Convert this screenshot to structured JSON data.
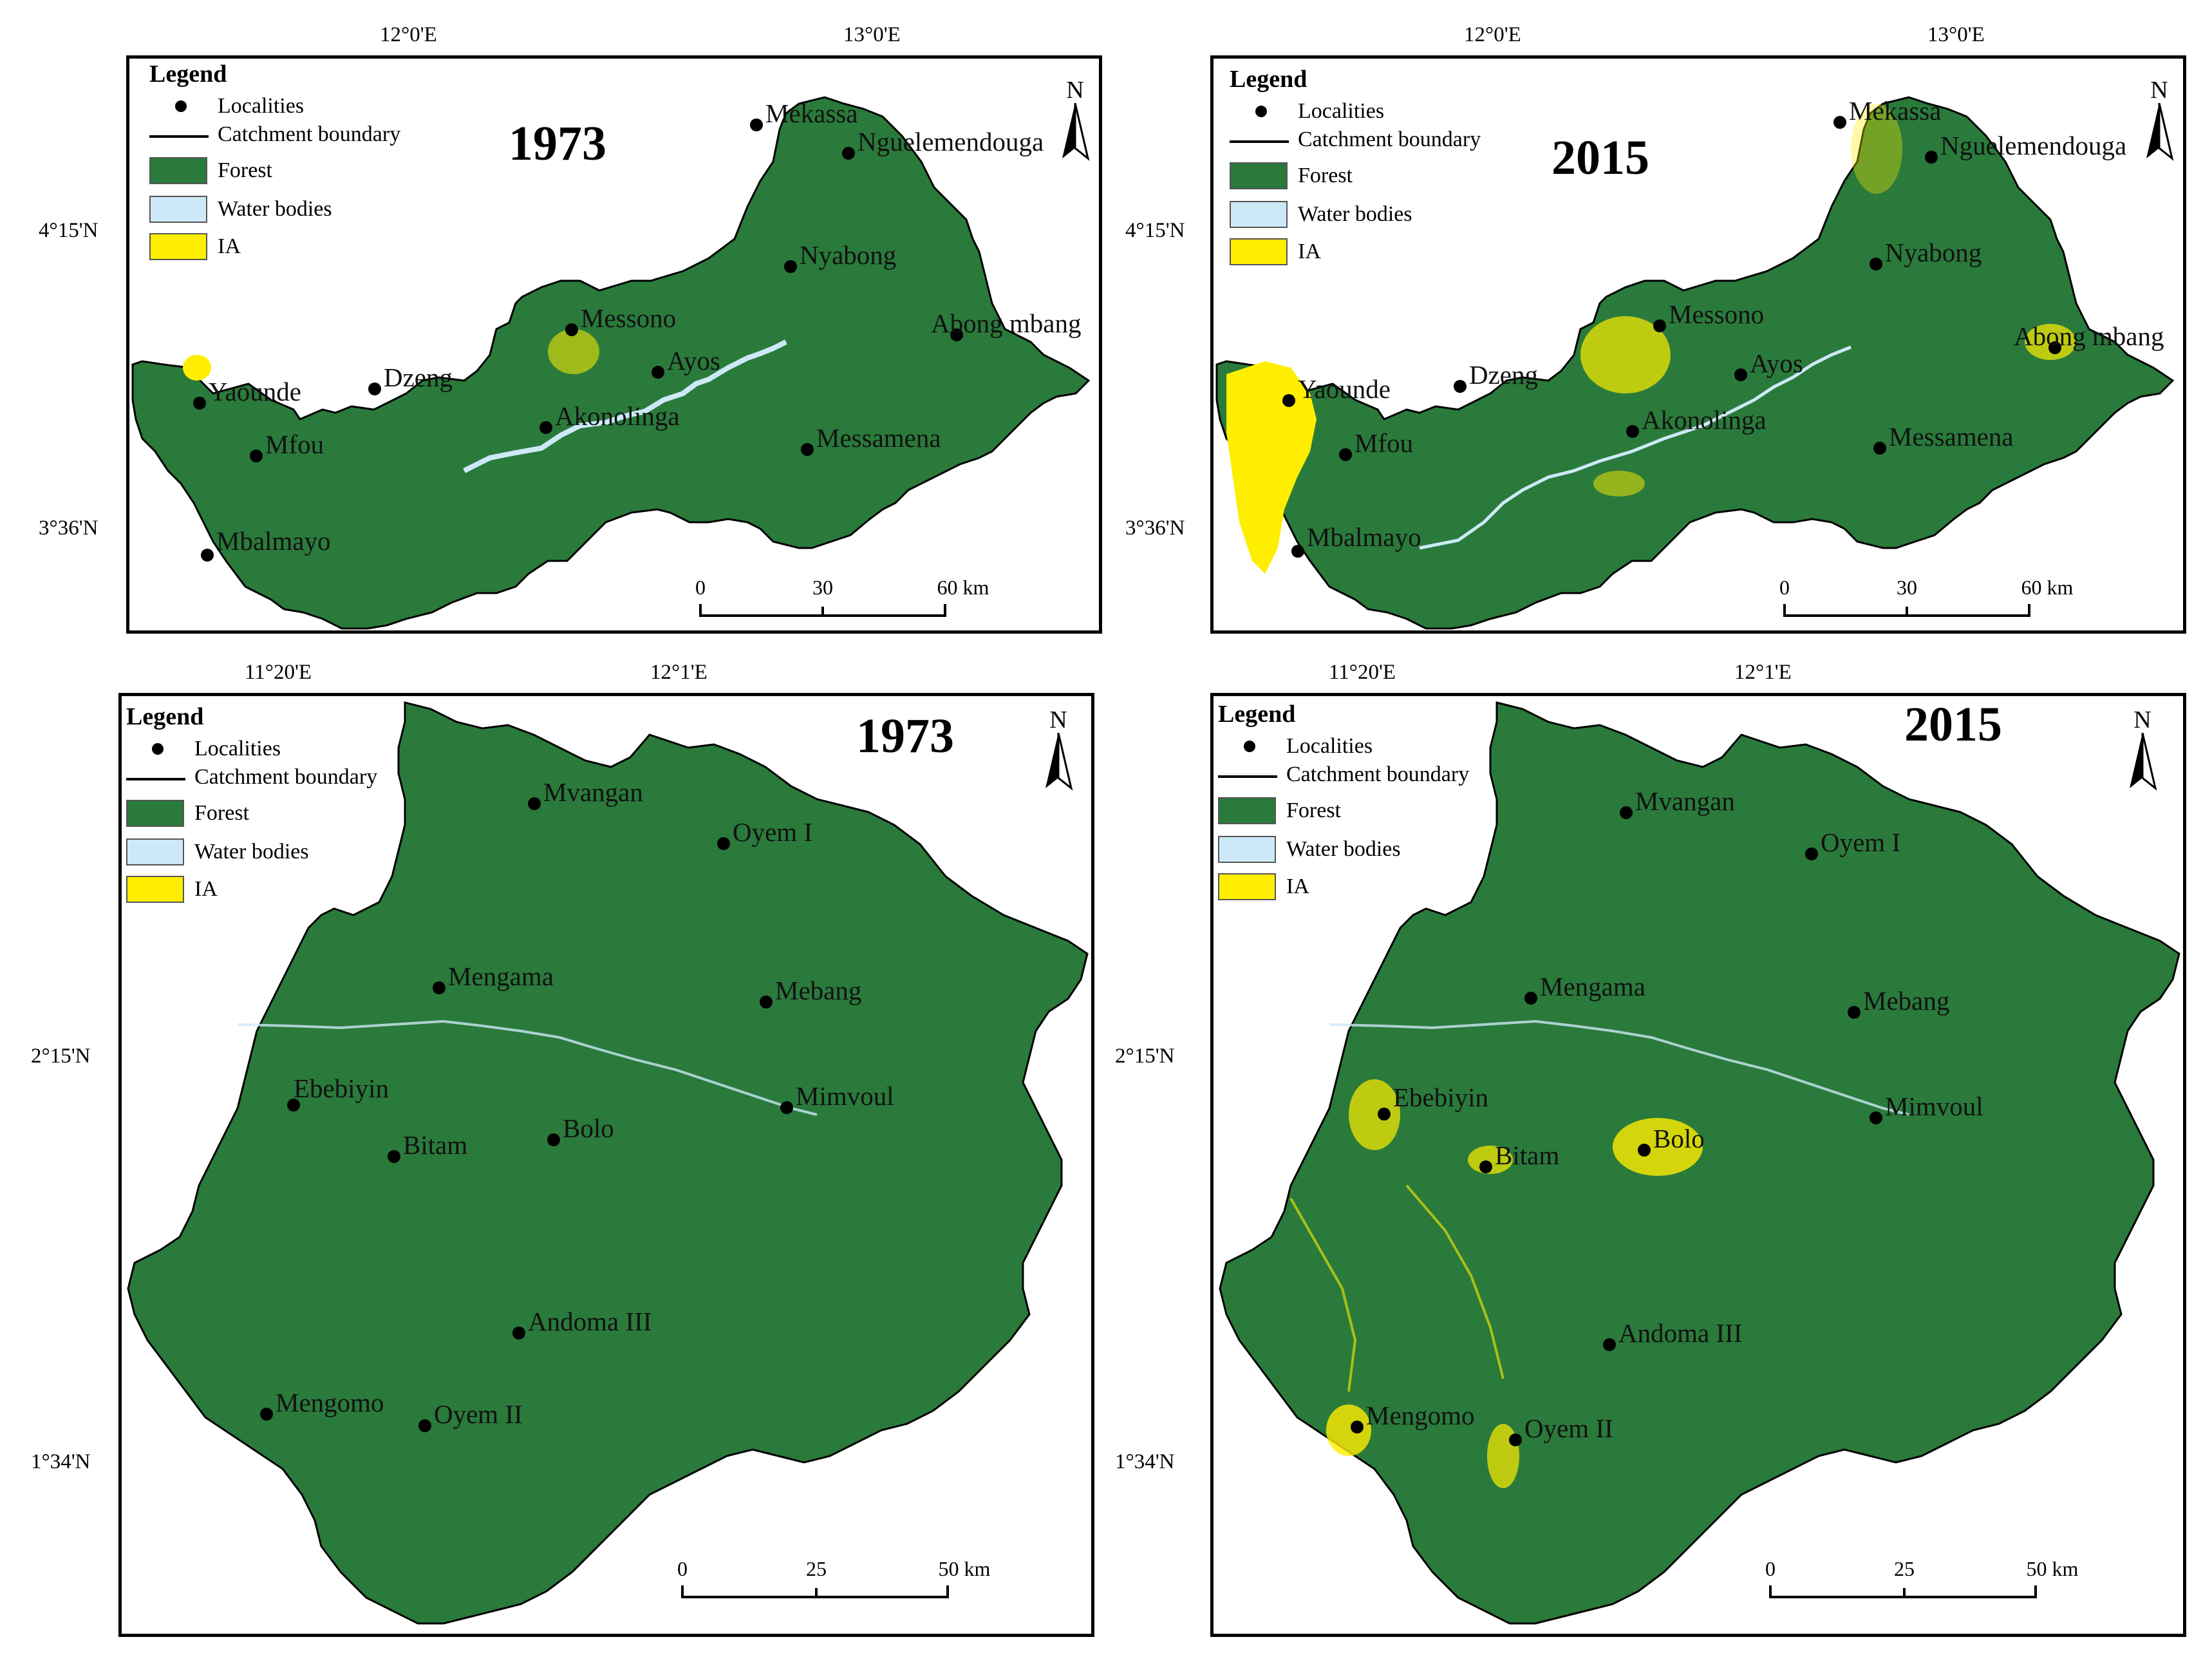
{
  "legend": {
    "title": "Legend",
    "localities": "Localities",
    "catchment": "Catchment boundary",
    "forest": "Forest",
    "water": "Water bodies",
    "ia": "IA"
  },
  "colors": {
    "forest": "#2a7a3b",
    "water": "#cde9f7",
    "ia": "#ffee00",
    "boundary": "#000000"
  },
  "north_label": "N",
  "top_row": {
    "lon_labels": [
      "12°0'E",
      "13°0'E"
    ],
    "lat_labels": [
      "4°15'N",
      "3°36'N"
    ],
    "scale": {
      "labels": [
        "0",
        "30",
        "60 km"
      ]
    },
    "map_1973": {
      "year": "1973",
      "localities": [
        "Mekassa",
        "Nguelemendouga",
        "Nyabong",
        "Messono",
        "Abong mbang",
        "Ayos",
        "Yaounde",
        "Dzeng",
        "Akonolinga",
        "Mfou",
        "Messamena",
        "Mbalmayo"
      ]
    },
    "map_2015": {
      "year": "2015",
      "localities": [
        "Mekassa",
        "Nguelemendouga",
        "Nyabong",
        "Messono",
        "Abong mbang",
        "Ayos",
        "Yaounde",
        "Dzeng",
        "Akonolinga",
        "Mfou",
        "Messamena",
        "Mbalmayo"
      ]
    }
  },
  "bottom_row": {
    "lon_labels": [
      "11°20'E",
      "12°1'E"
    ],
    "lat_labels": [
      "2°15'N",
      "1°34'N"
    ],
    "scale": {
      "labels": [
        "0",
        "25",
        "50 km"
      ]
    },
    "map_1973": {
      "year": "1973",
      "localities": [
        "Mvangan",
        "Oyem I",
        "Mengama",
        "Mebang",
        "Ebebiyin",
        "Mimvoul",
        "Bitam",
        "Bolo",
        "Andoma III",
        "Mengomo",
        "Oyem II"
      ]
    },
    "map_2015": {
      "year": "2015",
      "localities": [
        "Mvangan",
        "Oyem I",
        "Mengama",
        "Mebang",
        "Mimvoul",
        "Ebebiyin",
        "Bolo",
        "Bitam",
        "Andoma III",
        "Mengomo",
        "Oyem II"
      ]
    }
  }
}
